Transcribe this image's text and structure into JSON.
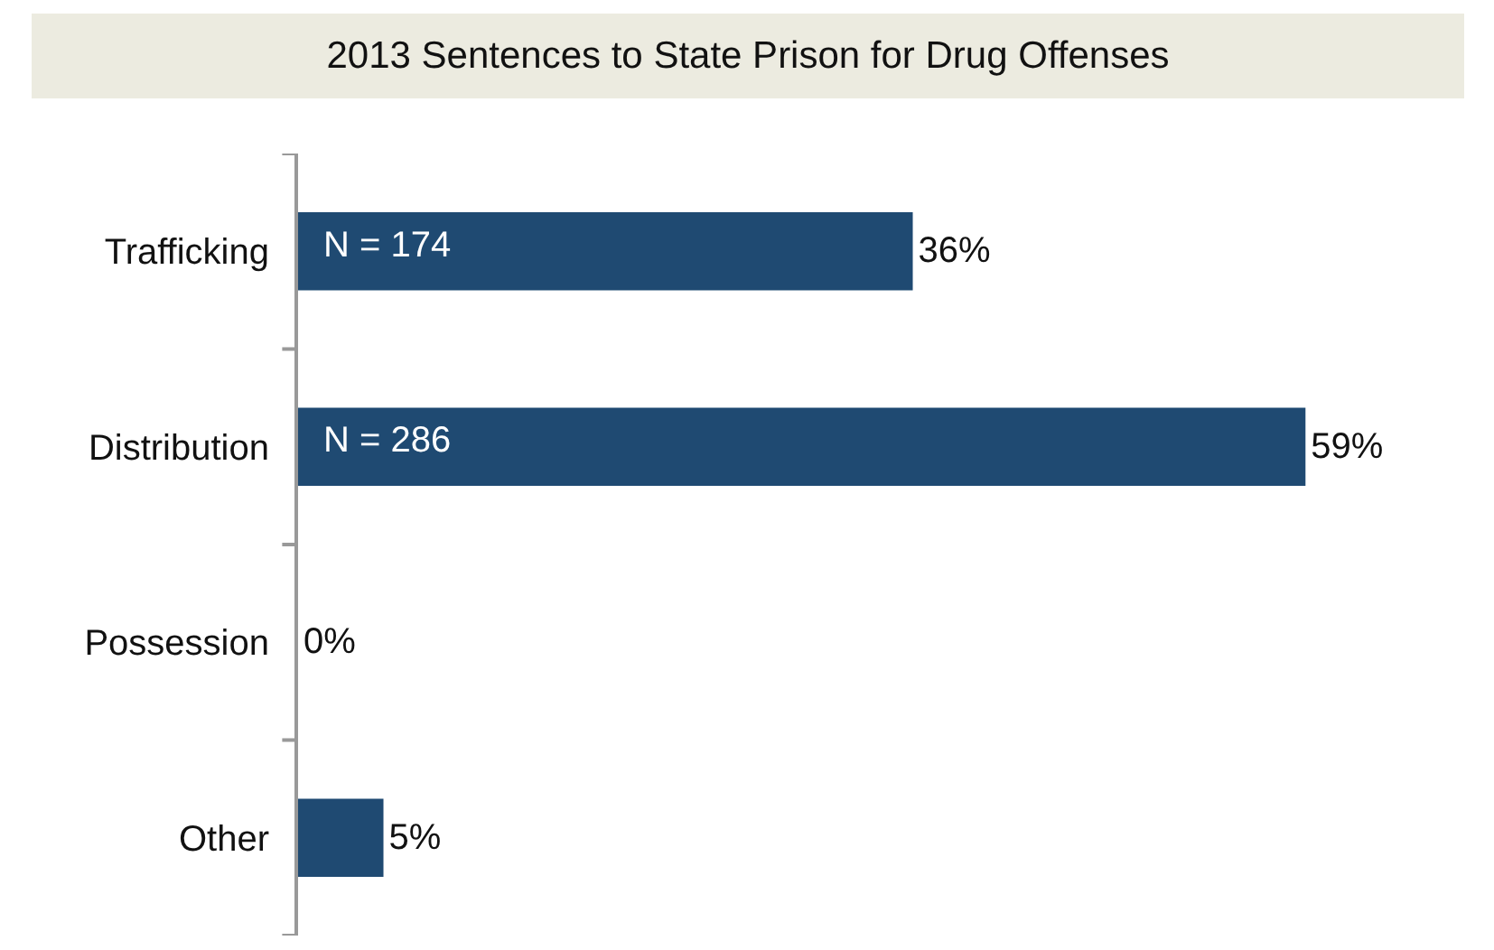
{
  "chart_data": {
    "type": "bar",
    "orientation": "horizontal",
    "title": "2013 Sentences to State Prison for Drug Offenses",
    "categories": [
      "Trafficking",
      "Distribution",
      "Possession",
      "Other"
    ],
    "values": [
      36,
      59,
      0,
      5
    ],
    "value_labels": [
      "36%",
      "59%",
      "0%",
      "5%"
    ],
    "color": "#1f4a72",
    "tick_labels": "y",
    "annotations": [
      {
        "text": "N = 174",
        "x": 0,
        "y": "Trafficking"
      },
      {
        "text": "N = 286",
        "x": 0,
        "y": "Distribution"
      }
    ]
  }
}
